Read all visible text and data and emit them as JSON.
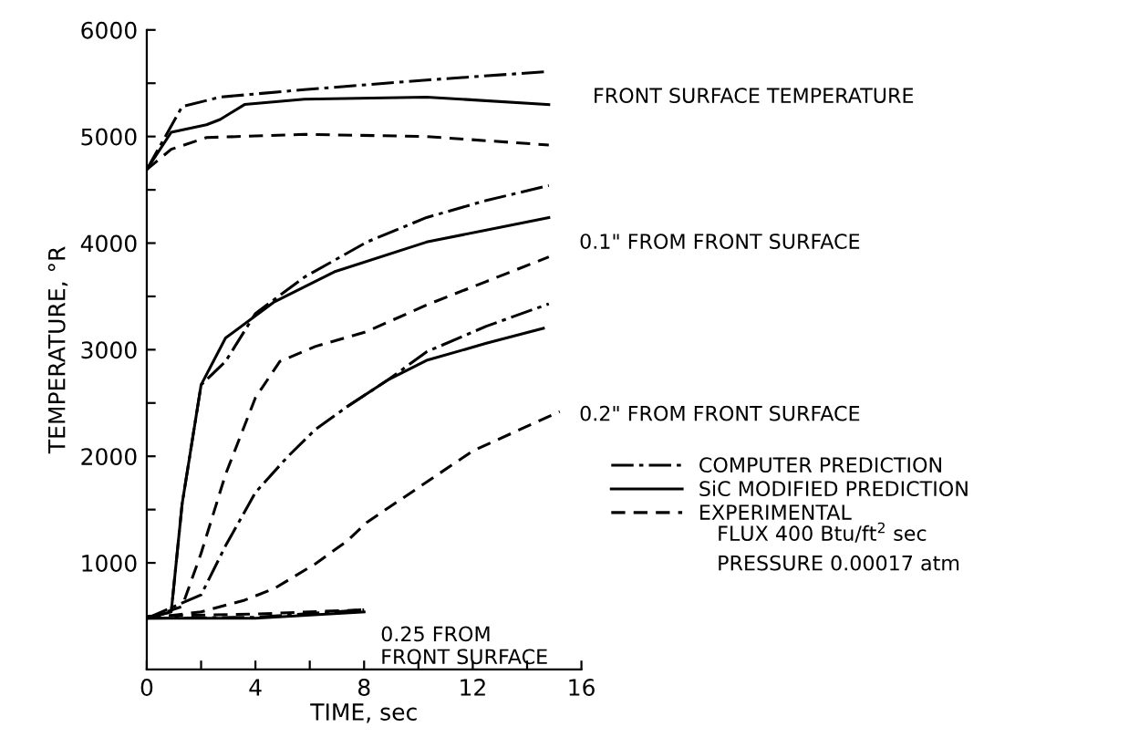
{
  "chart_data": {
    "type": "line",
    "xlabel": "TIME, sec",
    "ylabel": "TEMPERATURE, °R",
    "xlim": [
      0,
      16
    ],
    "ylim": [
      0,
      6000
    ],
    "xticks": [
      0,
      {
        "value": 2,
        "label": null
      },
      4,
      {
        "value": 6,
        "label": null
      },
      8,
      {
        "value": 10,
        "label": null
      },
      12,
      {
        "value": 14,
        "label": null
      },
      16
    ],
    "yticks": [
      {
        "value": 500,
        "label": null
      },
      1000,
      {
        "value": 1500,
        "label": null
      },
      2000,
      {
        "value": 2500,
        "label": null
      },
      3000,
      {
        "value": 3500,
        "label": null
      },
      4000,
      {
        "value": 4500,
        "label": null
      },
      5000,
      {
        "value": 5500,
        "label": null
      },
      6000
    ],
    "grid": false,
    "legend": "right",
    "marker": "none",
    "series": [
      {
        "name": "COMPUTER PREDICTION",
        "color": "#000000",
        "line_style": "dashdot",
        "x": [
          0,
          1.3,
          2.7,
          5.8,
          10.3,
          14.8
        ],
        "values": [
          4690,
          5280,
          5370,
          5440,
          5530,
          5610
        ]
      },
      {
        "name": "SiC MODIFIED PREDICTION",
        "color": "#000000",
        "line_style": "solid",
        "x": [
          0,
          0.9,
          2.2,
          2.7,
          3.6,
          5.8,
          10.3,
          14.8
        ],
        "values": [
          4690,
          5040,
          5110,
          5160,
          5300,
          5350,
          5370,
          5300
        ]
      },
      {
        "name": "EXPERIMENTAL",
        "color": "#000000",
        "line_style": "dashed",
        "x": [
          0,
          0.9,
          2.2,
          5.8,
          10.3,
          14.8
        ],
        "values": [
          4690,
          4880,
          4990,
          5020,
          5000,
          4920
        ]
      },
      {
        "color": "#000000",
        "line_style": "dashdot",
        "x": [
          0,
          0.9,
          1.3,
          2.0,
          2.9,
          4.0,
          5.8,
          8.1,
          10.3,
          12.5,
          14.8
        ],
        "values": [
          480,
          540,
          1550,
          2670,
          2890,
          3340,
          3680,
          4010,
          4240,
          4400,
          4540
        ]
      },
      {
        "color": "#000000",
        "line_style": "solid",
        "x": [
          0,
          0.9,
          1.3,
          2.0,
          2.9,
          4.7,
          6.9,
          10.3,
          14.8
        ],
        "values": [
          480,
          540,
          1550,
          2670,
          3110,
          3450,
          3730,
          4010,
          4240
        ]
      },
      {
        "color": "#000000",
        "line_style": "dashed",
        "x": [
          0,
          1.3,
          2.0,
          2.9,
          4.0,
          4.9,
          6.2,
          8.1,
          10.3,
          12.5,
          14.8
        ],
        "values": [
          480,
          590,
          1090,
          1830,
          2550,
          2890,
          3030,
          3170,
          3420,
          3640,
          3870
        ]
      },
      {
        "color": "#000000",
        "line_style": "dashdot",
        "x": [
          0,
          2.0,
          2.9,
          4.0,
          5.2,
          6.2,
          7.4,
          8.9,
          10.3,
          12.5,
          14.8
        ],
        "values": [
          480,
          700,
          1160,
          1660,
          2000,
          2250,
          2470,
          2720,
          2980,
          3220,
          3430
        ]
      },
      {
        "color": "#000000",
        "line_style": "solid",
        "x": [
          7.4,
          8.9,
          10.3,
          12.5,
          14.6
        ],
        "values": [
          2470,
          2720,
          2900,
          3060,
          3200
        ]
      },
      {
        "color": "#000000",
        "line_style": "dashed",
        "x": [
          0,
          2.0,
          3.6,
          4.7,
          6.2,
          7.4,
          8.1,
          12.0,
          15.2
        ],
        "values": [
          480,
          540,
          650,
          760,
          990,
          1210,
          1380,
          2050,
          2420
        ]
      },
      {
        "color": "#000000",
        "line_style": "dashdot",
        "x": [
          0,
          4,
          8
        ],
        "values": [
          480,
          490,
          560
        ]
      },
      {
        "color": "#000000",
        "line_style": "solid",
        "x": [
          0,
          4,
          8
        ],
        "values": [
          480,
          480,
          540
        ]
      },
      {
        "color": "#000000",
        "line_style": "dashed",
        "x": [
          0,
          4,
          8
        ],
        "values": [
          500,
          520,
          560
        ]
      }
    ],
    "annotations": [
      "FRONT SURFACE TEMPERATURE",
      "0.1\" FROM FRONT SURFACE",
      "0.2\" FROM FRONT SURFACE",
      "0.25 FROM\nFRONT SURFACE",
      "FLUX 400 Btu/ft$^{2}$ sec",
      "PRESSURE 0.00017 atm"
    ]
  }
}
